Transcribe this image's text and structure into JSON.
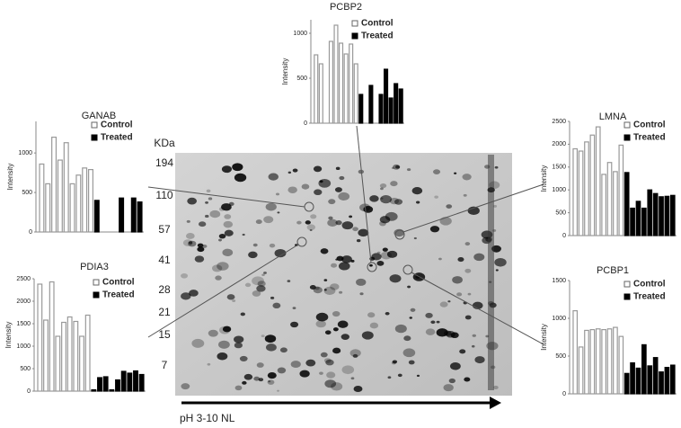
{
  "gel": {
    "unit_label": "KDa",
    "markers": [
      "194",
      "110",
      "57",
      "41",
      "28",
      "21",
      "15",
      "7"
    ],
    "x_label": "pH 3-10 NL"
  },
  "chart_data": [
    {
      "type": "bar",
      "title": "PCBP2",
      "y_label": "Intensity",
      "ylim": [
        0,
        1150
      ],
      "yticks": [
        0,
        500,
        1000
      ],
      "categories": [
        null,
        null,
        null,
        null,
        null,
        null,
        null,
        null,
        null,
        null,
        null,
        null,
        null,
        null,
        null,
        null,
        null,
        null
      ],
      "series": [
        {
          "name": "Control",
          "color": "#ffffff",
          "values": [
            760,
            660,
            0,
            910,
            1090,
            890,
            770,
            880,
            660,
            null,
            null,
            null,
            null,
            null,
            null,
            null,
            null,
            null
          ]
        },
        {
          "name": "Treated",
          "color": "#000000",
          "values": [
            null,
            null,
            null,
            null,
            null,
            null,
            null,
            null,
            null,
            320,
            0,
            420,
            0,
            320,
            600,
            280,
            440,
            380
          ]
        }
      ]
    },
    {
      "type": "bar",
      "title": "GANAB",
      "y_label": "Intensity",
      "ylim": [
        0,
        1400
      ],
      "yticks": [
        0,
        500,
        1000
      ],
      "categories": [
        null,
        null,
        null,
        null,
        null,
        null,
        null,
        null,
        null,
        null,
        null,
        null,
        null,
        null,
        null,
        null,
        null
      ],
      "series": [
        {
          "name": "Control",
          "color": "#ffffff",
          "values": [
            860,
            610,
            1200,
            910,
            1130,
            610,
            720,
            810,
            790,
            null,
            null,
            null,
            null,
            null,
            null,
            null,
            null
          ]
        },
        {
          "name": "Treated",
          "color": "#000000",
          "values": [
            null,
            null,
            null,
            null,
            null,
            null,
            null,
            null,
            null,
            400,
            0,
            0,
            0,
            430,
            0,
            430,
            380
          ]
        }
      ]
    },
    {
      "type": "bar",
      "title": "LMNA",
      "y_label": "Intensity",
      "ylim": [
        0,
        2500
      ],
      "yticks": [
        0,
        500,
        1000,
        1500,
        2000,
        2500
      ],
      "categories": [
        null,
        null,
        null,
        null,
        null,
        null,
        null,
        null,
        null,
        null,
        null,
        null,
        null,
        null,
        null,
        null,
        null,
        null
      ],
      "series": [
        {
          "name": "Control",
          "color": "#ffffff",
          "values": [
            1900,
            1850,
            2050,
            2200,
            2380,
            1340,
            1600,
            1400,
            1980,
            null,
            null,
            null,
            null,
            null,
            null,
            null,
            null,
            null
          ]
        },
        {
          "name": "Treated",
          "color": "#000000",
          "values": [
            null,
            null,
            null,
            null,
            null,
            null,
            null,
            null,
            null,
            1380,
            600,
            750,
            600,
            1000,
            920,
            850,
            860,
            880
          ]
        }
      ]
    },
    {
      "type": "bar",
      "title": "PDIA3",
      "y_label": "Intensity",
      "ylim": [
        0,
        2500
      ],
      "yticks": [
        0,
        500,
        1000,
        1500,
        2000,
        2500
      ],
      "categories": [
        null,
        null,
        null,
        null,
        null,
        null,
        null,
        null,
        null,
        null,
        null,
        null,
        null,
        null,
        null,
        null,
        null,
        null
      ],
      "series": [
        {
          "name": "Control",
          "color": "#ffffff",
          "values": [
            2380,
            1580,
            2430,
            1220,
            1530,
            1650,
            1550,
            1220,
            1690,
            null,
            null,
            null,
            null,
            null,
            null,
            null,
            null,
            null
          ]
        },
        {
          "name": "Treated",
          "color": "#000000",
          "values": [
            null,
            null,
            null,
            null,
            null,
            null,
            null,
            null,
            null,
            30,
            300,
            320,
            30,
            250,
            440,
            400,
            450,
            370
          ]
        }
      ]
    },
    {
      "type": "bar",
      "title": "PCBP1",
      "y_label": "Intensity",
      "ylim": [
        0,
        1500
      ],
      "yticks": [
        0,
        500,
        1000,
        1500
      ],
      "categories": [
        null,
        null,
        null,
        null,
        null,
        null,
        null,
        null,
        null,
        null,
        null,
        null,
        null,
        null,
        null,
        null,
        null,
        null
      ],
      "series": [
        {
          "name": "Control",
          "color": "#ffffff",
          "values": [
            1100,
            620,
            840,
            850,
            860,
            850,
            860,
            880,
            760,
            null,
            null,
            null,
            null,
            null,
            null,
            null,
            null,
            null
          ]
        },
        {
          "name": "Treated",
          "color": "#000000",
          "values": [
            null,
            null,
            null,
            null,
            null,
            null,
            null,
            null,
            null,
            270,
            410,
            340,
            650,
            370,
            480,
            290,
            350,
            380
          ]
        }
      ]
    }
  ]
}
